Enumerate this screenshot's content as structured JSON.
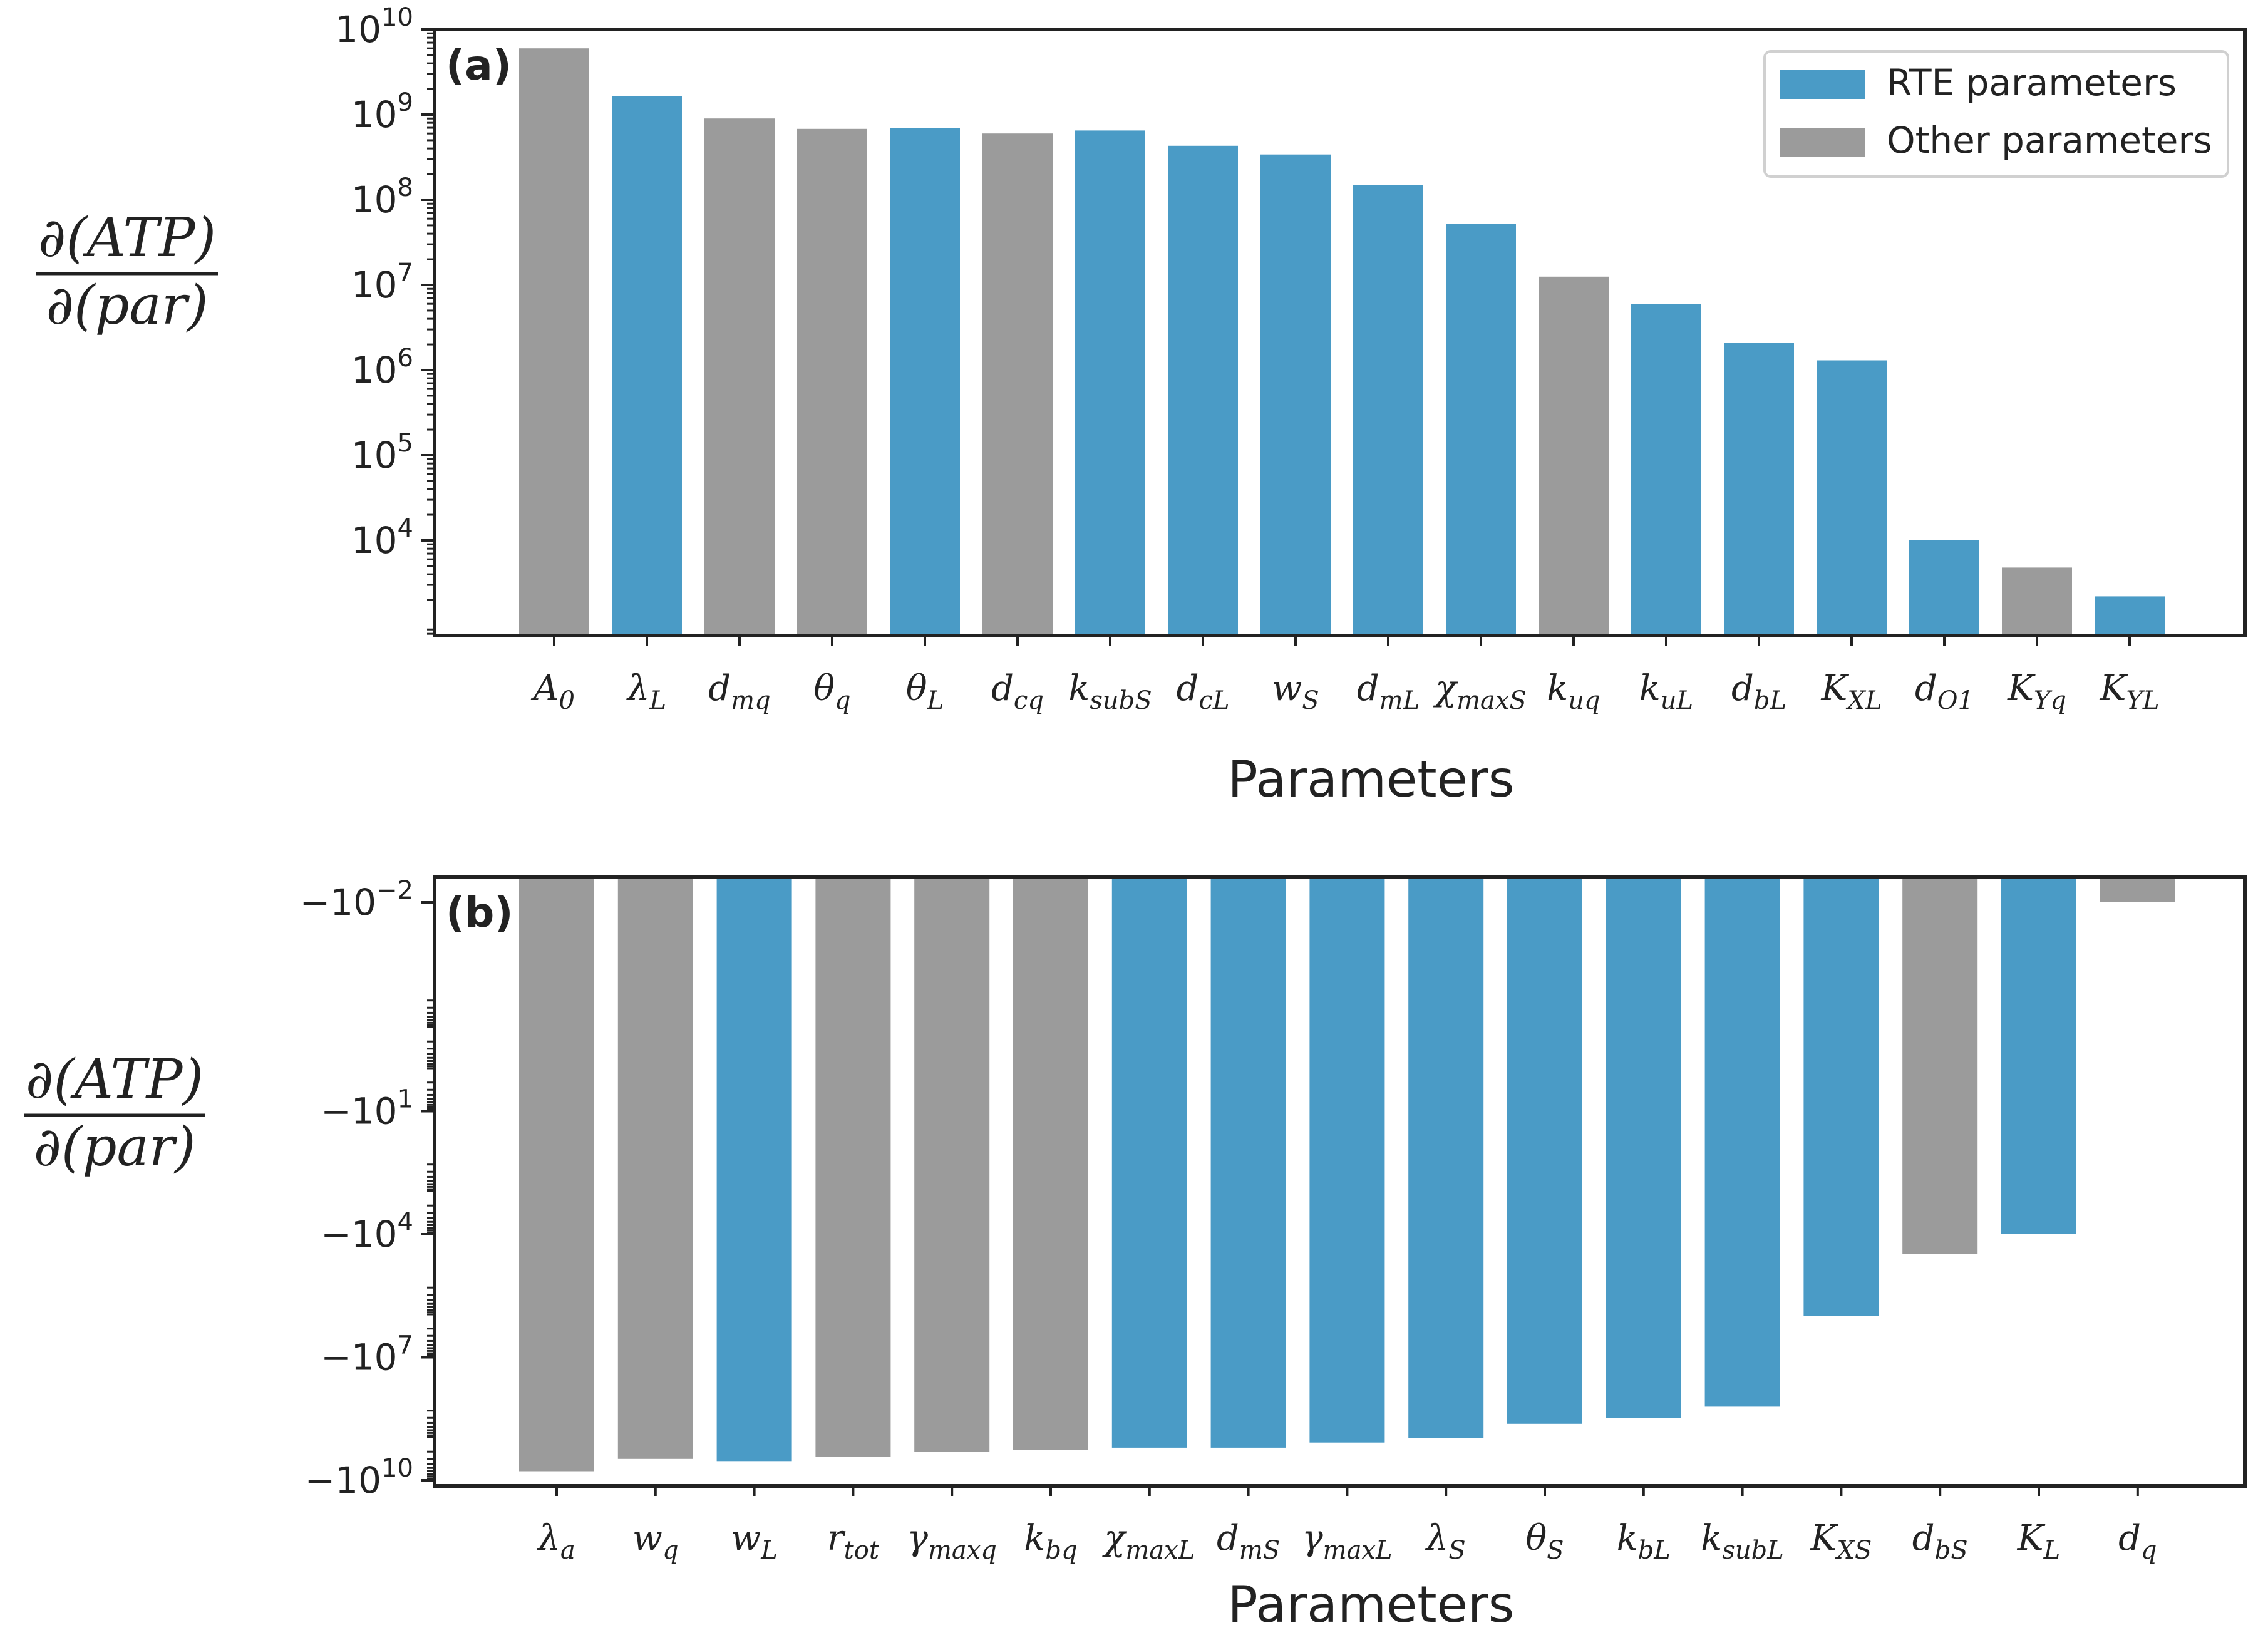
{
  "colors": {
    "rte": "#4a9bc6",
    "other": "#9b9b9b",
    "axis": "#222222"
  },
  "chart_data": [
    {
      "type": "bar",
      "panel": "(a)",
      "yscale": "log",
      "xlabel": "Parameters",
      "ylabel": {
        "numerator": "∂(ATP)",
        "denominator": "∂(par)"
      },
      "ylim": [
        500,
        10000000000
      ],
      "yticks": [
        {
          "base": "10",
          "exp": "4",
          "value": 10000
        },
        {
          "base": "10",
          "exp": "5",
          "value": 100000
        },
        {
          "base": "10",
          "exp": "6",
          "value": 1000000
        },
        {
          "base": "10",
          "exp": "7",
          "value": 10000000
        },
        {
          "base": "10",
          "exp": "8",
          "value": 100000000
        },
        {
          "base": "10",
          "exp": "9",
          "value": 1000000000
        },
        {
          "base": "10",
          "exp": "10",
          "value": 10000000000
        }
      ],
      "legend": {
        "position": "top-right",
        "entries": [
          {
            "label": "RTE parameters",
            "group": "rte"
          },
          {
            "label": "Other parameters",
            "group": "other"
          }
        ]
      },
      "bars": [
        {
          "sym": "A",
          "sub": "0",
          "value": 6000000000,
          "group": "other"
        },
        {
          "sym": "λ",
          "sub": "L",
          "value": 1650000000,
          "group": "rte"
        },
        {
          "sym": "d",
          "sub": "mq",
          "value": 900000000,
          "group": "other"
        },
        {
          "sym": "θ",
          "sub": "q",
          "value": 680000000,
          "group": "other"
        },
        {
          "sym": "θ",
          "sub": "L",
          "value": 700000000,
          "group": "rte"
        },
        {
          "sym": "d",
          "sub": "cq",
          "value": 600000000,
          "group": "other"
        },
        {
          "sym": "k",
          "sub": "subS",
          "value": 650000000,
          "group": "rte"
        },
        {
          "sym": "d",
          "sub": "cL",
          "value": 430000000,
          "group": "rte"
        },
        {
          "sym": "w",
          "sub": "S",
          "value": 340000000,
          "group": "rte"
        },
        {
          "sym": "d",
          "sub": "mL",
          "value": 150000000,
          "group": "rte"
        },
        {
          "sym": "χ",
          "sub": "maxS",
          "value": 52000000,
          "group": "rte"
        },
        {
          "sym": "k",
          "sub": "uq",
          "value": 12500000,
          "group": "other"
        },
        {
          "sym": "k",
          "sub": "uL",
          "value": 6000000,
          "group": "rte"
        },
        {
          "sym": "d",
          "sub": "bL",
          "value": 2100000,
          "group": "rte"
        },
        {
          "sym": "K",
          "sub": "XL",
          "value": 1300000,
          "group": "rte"
        },
        {
          "sym": "d",
          "sub": "O1",
          "value": 10000,
          "group": "rte"
        },
        {
          "sym": "K",
          "sub": "Yq",
          "value": 4800,
          "group": "other"
        },
        {
          "sym": "K",
          "sub": "YL",
          "value": 2200,
          "group": "rte"
        }
      ]
    },
    {
      "type": "bar",
      "panel": "(b)",
      "yscale": "symlog (negative)",
      "xlabel": "Parameters",
      "ylabel": {
        "numerator": "∂(ATP)",
        "denominator": "∂(par)"
      },
      "yticks": [
        {
          "prefix": "−",
          "base": "10",
          "exp": "−2",
          "value": -0.01
        },
        {
          "prefix": "−",
          "base": "10",
          "exp": "1",
          "value": -10
        },
        {
          "prefix": "−",
          "base": "10",
          "exp": "4",
          "value": -10000
        },
        {
          "prefix": "−",
          "base": "10",
          "exp": "7",
          "value": -10000000
        },
        {
          "prefix": "−",
          "base": "10",
          "exp": "10",
          "value": -10000000000
        }
      ],
      "bars": [
        {
          "sym": "λ",
          "sub": "a",
          "value": -6000000000,
          "group": "other"
        },
        {
          "sym": "w",
          "sub": "q",
          "value": -3000000000,
          "group": "other"
        },
        {
          "sym": "w",
          "sub": "L",
          "value": -3400000000,
          "group": "rte"
        },
        {
          "sym": "r",
          "sub": "tot",
          "value": -2700000000,
          "group": "other"
        },
        {
          "sym": "γ",
          "sub": "maxq",
          "value": -2000000000,
          "group": "other"
        },
        {
          "sym": "k",
          "sub": "bq",
          "value": -1800000000,
          "group": "other"
        },
        {
          "sym": "χ",
          "sub": "maxL",
          "value": -1600000000,
          "group": "rte"
        },
        {
          "sym": "d",
          "sub": "mS",
          "value": -1600000000,
          "group": "rte"
        },
        {
          "sym": "γ",
          "sub": "maxL",
          "value": -1200000000,
          "group": "rte"
        },
        {
          "sym": "λ",
          "sub": "S",
          "value": -950000000,
          "group": "rte"
        },
        {
          "sym": "θ",
          "sub": "S",
          "value": -420000000,
          "group": "rte"
        },
        {
          "sym": "k",
          "sub": "bL",
          "value": -300000000,
          "group": "rte"
        },
        {
          "sym": "k",
          "sub": "subL",
          "value": -160000000,
          "group": "rte"
        },
        {
          "sym": "K",
          "sub": "XS",
          "value": -1000000,
          "group": "rte"
        },
        {
          "sym": "d",
          "sub": "bS",
          "value": -30000,
          "group": "other"
        },
        {
          "sym": "K",
          "sub": "L",
          "value": -10000,
          "group": "rte"
        },
        {
          "sym": "d",
          "sub": "q",
          "value": -0.0001,
          "group": "other"
        }
      ]
    }
  ]
}
